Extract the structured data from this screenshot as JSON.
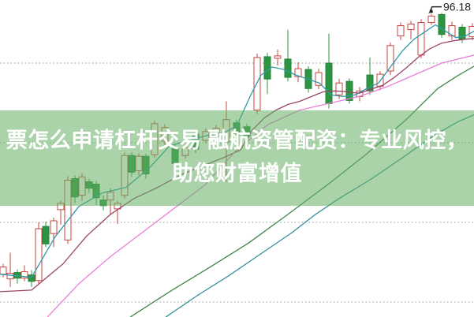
{
  "headline": {
    "line1": "票怎么申请杠杆交易 融航资管配资：专业风控，",
    "line2": "助您财富增值"
  },
  "overlay": {
    "background": "rgba(101,174,101,0.55)",
    "text_color": "#ffffff"
  },
  "chart_data": {
    "type": "candlestick",
    "title": "",
    "xlabel": "",
    "ylabel": "",
    "grid": true,
    "legend": false,
    "ylim": [
      58.12,
      97.92
    ],
    "gridline_prices": [
      90,
      80,
      70,
      60
    ],
    "candle_width": 8,
    "colors": {
      "up_candle": "#c8453f",
      "down_candle": "#2d9442",
      "down_candle_stroke": "#268238",
      "gridline": "#929a9a",
      "annotation_text": "#222222",
      "background": "#ffffff"
    },
    "annotation": {
      "text": "96.18",
      "candle_index": 48
    },
    "candles": [
      [
        4,
        63.5,
        64.8,
        63.1,
        64.4
      ],
      [
        13,
        62.9,
        66.2,
        61.9,
        63.6
      ],
      [
        22,
        63.7,
        64.1,
        62.3,
        63.0
      ],
      [
        31,
        63.0,
        64.6,
        62.6,
        63.8
      ],
      [
        40,
        63.4,
        64.0,
        61.9,
        62.6
      ],
      [
        49,
        62.7,
        70.0,
        62.2,
        69.2
      ],
      [
        58,
        69.5,
        70.1,
        66.9,
        67.3
      ],
      [
        68,
        68.6,
        70.6,
        66.9,
        70.2
      ],
      [
        77,
        71.6,
        72.7,
        69.7,
        72.4
      ],
      [
        86,
        67.8,
        75.8,
        67.3,
        75.3
      ],
      [
        95,
        75.5,
        75.9,
        72.4,
        73.2
      ],
      [
        104,
        73.4,
        76.2,
        72.7,
        75.7
      ],
      [
        113,
        75.1,
        75.5,
        73.7,
        74.3
      ],
      [
        122,
        74.8,
        75.2,
        72.2,
        73.1
      ],
      [
        131,
        72.8,
        73.4,
        71.5,
        72.1
      ],
      [
        140,
        72.8,
        74.3,
        70.9,
        73.8
      ],
      [
        149,
        71.7,
        72.7,
        69.8,
        72.4
      ],
      [
        158,
        73.4,
        78.8,
        73.0,
        78.4
      ],
      [
        167,
        78.4,
        78.8,
        75.7,
        76.3
      ],
      [
        176,
        76.5,
        78.7,
        75.9,
        78.3
      ],
      [
        185,
        78.3,
        78.6,
        75.5,
        76.1
      ],
      [
        196,
        78.5,
        82.8,
        78.1,
        82.4
      ],
      [
        209,
        80.2,
        82.3,
        79.7,
        81.9
      ],
      [
        222,
        79.4,
        79.8,
        76.9,
        77.4
      ],
      [
        235,
        78.4,
        79.8,
        78.0,
        79.4
      ],
      [
        248,
        81.1,
        81.5,
        78.7,
        79.2
      ],
      [
        261,
        80.3,
        81.8,
        79.9,
        81.4
      ],
      [
        274,
        80.8,
        82.2,
        80.4,
        81.8
      ],
      [
        287,
        80.1,
        85.2,
        75.1,
        82.9
      ],
      [
        300,
        82.5,
        82.9,
        80.5,
        81.0
      ],
      [
        313,
        82.0,
        82.4,
        80.2,
        80.8
      ],
      [
        326,
        84.1,
        91.2,
        83.6,
        90.7
      ],
      [
        339,
        90.8,
        91.3,
        86.1,
        88.0
      ],
      [
        352,
        90.6,
        91.7,
        89.7,
        90.9
      ],
      [
        365,
        90.5,
        94.2,
        87.7,
        88.2
      ],
      [
        378,
        88.3,
        90.1,
        87.6,
        89.3
      ],
      [
        391,
        89.2,
        89.6,
        86.3,
        86.8
      ],
      [
        404,
        87.2,
        89.3,
        86.7,
        88.8
      ],
      [
        417,
        90.0,
        93.7,
        84.3,
        84.9
      ],
      [
        430,
        86.0,
        88.0,
        85.5,
        87.5
      ],
      [
        443,
        87.7,
        88.1,
        84.9,
        85.3
      ],
      [
        456,
        85.8,
        87.0,
        85.2,
        86.5
      ],
      [
        469,
        88.5,
        90.7,
        86.0,
        86.5
      ],
      [
        482,
        87.1,
        89.0,
        86.6,
        88.6
      ],
      [
        495,
        89.0,
        92.6,
        88.5,
        92.2
      ],
      [
        508,
        93.4,
        95.1,
        92.9,
        94.7
      ],
      [
        521,
        94.2,
        95.3,
        93.0,
        94.9
      ],
      [
        534,
        91.0,
        95.5,
        90.6,
        95.1
      ],
      [
        547,
        95.1,
        96.18,
        94.8,
        95.9
      ],
      [
        560,
        96.1,
        96.3,
        93.2,
        93.6
      ],
      [
        573,
        93.4,
        95.2,
        92.9,
        94.7
      ],
      [
        586,
        94.5,
        94.9,
        92.5,
        93.0
      ],
      [
        599,
        93.3,
        95.0,
        92.9,
        94.6
      ]
    ],
    "moving_averages": [
      {
        "name": "ma-fast-teal",
        "color": "#2e9aa6",
        "points": [
          [
            0,
            63.5
          ],
          [
            40,
            63.1
          ],
          [
            70,
            68.2
          ],
          [
            100,
            72.0
          ],
          [
            130,
            73.7
          ],
          [
            160,
            74.4
          ],
          [
            190,
            76.9
          ],
          [
            215,
            79.6
          ],
          [
            240,
            80.3
          ],
          [
            262,
            80.9
          ],
          [
            285,
            81.3
          ],
          [
            300,
            82.1
          ],
          [
            318,
            86.0
          ],
          [
            331,
            88.5
          ],
          [
            345,
            89.5
          ],
          [
            360,
            89.2
          ],
          [
            375,
            88.5
          ],
          [
            390,
            88.0
          ],
          [
            405,
            87.5
          ],
          [
            420,
            86.0
          ],
          [
            435,
            85.8
          ],
          [
            450,
            86.0
          ],
          [
            465,
            86.8
          ],
          [
            480,
            87.5
          ],
          [
            495,
            89.5
          ],
          [
            510,
            91.5
          ],
          [
            525,
            93.0
          ],
          [
            540,
            94.0
          ],
          [
            552,
            94.8
          ],
          [
            565,
            94.0
          ],
          [
            578,
            93.2
          ],
          [
            590,
            93.4
          ],
          [
            601,
            94.0
          ]
        ]
      },
      {
        "name": "ma-mid-maroon",
        "color": "#9c4468",
        "points": [
          [
            0,
            61.3
          ],
          [
            40,
            61.5
          ],
          [
            80,
            64.8
          ],
          [
            110,
            68.3
          ],
          [
            140,
            71.0
          ],
          [
            170,
            73.0
          ],
          [
            200,
            74.4
          ],
          [
            230,
            76.0
          ],
          [
            260,
            77.2
          ],
          [
            285,
            78.2
          ],
          [
            305,
            79.1
          ],
          [
            320,
            81.6
          ],
          [
            335,
            83.1
          ],
          [
            350,
            84.1
          ],
          [
            365,
            84.8
          ],
          [
            380,
            85.2
          ],
          [
            395,
            85.8
          ],
          [
            410,
            86.4
          ],
          [
            425,
            86.5
          ],
          [
            440,
            86.4
          ],
          [
            455,
            86.2
          ],
          [
            470,
            86.7
          ],
          [
            485,
            87.2
          ],
          [
            500,
            88.2
          ],
          [
            515,
            89.4
          ],
          [
            530,
            90.7
          ],
          [
            545,
            91.8
          ],
          [
            560,
            92.5
          ],
          [
            575,
            92.8
          ],
          [
            590,
            93.0
          ],
          [
            601,
            93.1
          ]
        ]
      },
      {
        "name": "ma-slow-magenta",
        "color": "#e77fd8",
        "points": [
          [
            60,
            58.1
          ],
          [
            100,
            62.3
          ],
          [
            140,
            65.7
          ],
          [
            180,
            68.7
          ],
          [
            220,
            71.7
          ],
          [
            260,
            74.7
          ],
          [
            300,
            79.1
          ],
          [
            340,
            82.3
          ],
          [
            380,
            84.1
          ],
          [
            420,
            85.0
          ],
          [
            455,
            85.8
          ],
          [
            490,
            87.0
          ],
          [
            525,
            88.5
          ],
          [
            560,
            90.0
          ],
          [
            601,
            91.0
          ]
        ]
      },
      {
        "name": "ma-slower-green",
        "color": "#40864a",
        "points": [
          [
            165,
            58.1
          ],
          [
            215,
            61.3
          ],
          [
            265,
            64.3
          ],
          [
            315,
            67.4
          ],
          [
            365,
            71.0
          ],
          [
            415,
            74.7
          ],
          [
            465,
            78.6
          ],
          [
            515,
            82.9
          ],
          [
            555,
            86.8
          ],
          [
            580,
            88.4
          ],
          [
            601,
            89.6
          ]
        ]
      },
      {
        "name": "ma-slowest-teal",
        "color": "#37909c",
        "points": [
          [
            210,
            58.1
          ],
          [
            250,
            60.8
          ],
          [
            290,
            63.3
          ],
          [
            330,
            66.0
          ],
          [
            370,
            68.7
          ],
          [
            400,
            71.0
          ],
          [
            430,
            73.0
          ],
          [
            470,
            75.4
          ],
          [
            510,
            78.1
          ],
          [
            550,
            80.9
          ],
          [
            580,
            82.6
          ],
          [
            601,
            83.5
          ]
        ]
      }
    ]
  }
}
